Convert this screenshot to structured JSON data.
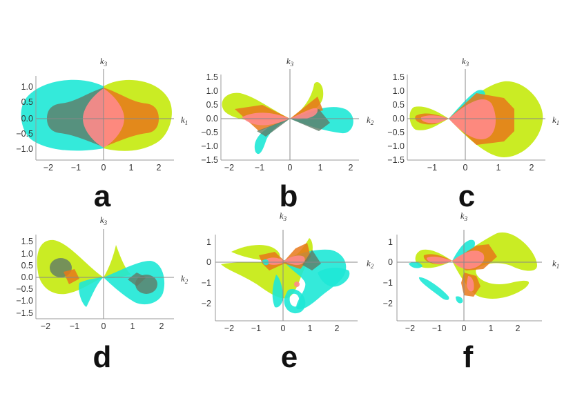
{
  "colors": {
    "cyan": "#1ee8d6",
    "yellow": "#c4ea0c",
    "orange": "#e8781a",
    "pink": "#ff8a8a",
    "gray": "#5f7a66"
  },
  "panels": [
    {
      "letter": "a",
      "xlabel": "k",
      "xlabel_sub": "1",
      "ylabel": "k",
      "ylabel_sub": "3",
      "xticks": [
        "−2",
        "−1",
        "0",
        "1",
        "2"
      ],
      "yticks": [
        "1.0",
        "0.5",
        "0.0",
        "−0.5",
        "−1.0"
      ]
    },
    {
      "letter": "b",
      "xlabel": "k",
      "xlabel_sub": "2",
      "ylabel": "k",
      "ylabel_sub": "3",
      "xticks": [
        "−2",
        "−1",
        "0",
        "1",
        "2"
      ],
      "yticks": [
        "1.5",
        "1.0",
        "0.5",
        "0.0",
        "−0.5",
        "−1.0",
        "−1.5"
      ]
    },
    {
      "letter": "c",
      "xlabel": "k",
      "xlabel_sub": "1",
      "ylabel": "k",
      "ylabel_sub": "3",
      "xticks": [
        "−1",
        "0",
        "1",
        "2"
      ],
      "yticks": [
        "1.5",
        "1.0",
        "0.5",
        "0.0",
        "−0.5",
        "−1.0",
        "−1.5"
      ]
    },
    {
      "letter": "d",
      "xlabel": "k",
      "xlabel_sub": "2",
      "ylabel": "k",
      "ylabel_sub": "3",
      "xticks": [
        "−2",
        "−1",
        "0",
        "1",
        "2"
      ],
      "yticks": [
        "1.5",
        "1.0",
        "0.5",
        "0.0",
        "−0.5",
        "−1.0",
        "−1.5"
      ]
    },
    {
      "letter": "e",
      "xlabel": "k",
      "xlabel_sub": "2",
      "ylabel": "k",
      "ylabel_sub": "3",
      "xticks": [
        "−2",
        "−1",
        "0",
        "1",
        "2"
      ],
      "yticks": [
        "1",
        "0",
        "−1",
        "−2"
      ]
    },
    {
      "letter": "f",
      "xlabel": "k",
      "xlabel_sub": "1",
      "ylabel": "k",
      "ylabel_sub": "3",
      "xticks": [
        "−2",
        "−1",
        "0",
        "1",
        "2"
      ],
      "yticks": [
        "1",
        "0",
        "−1",
        "−2"
      ]
    }
  ]
}
